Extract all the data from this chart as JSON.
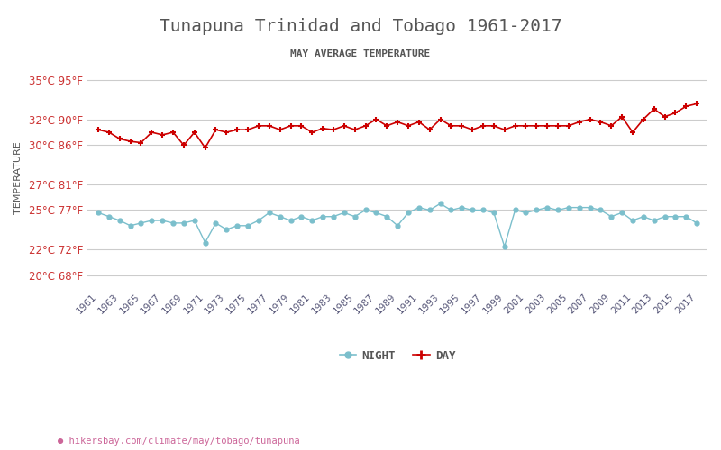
{
  "title": "Tunapuna Trinidad and Tobago 1961-2017",
  "subtitle": "MAY AVERAGE TEMPERATURE",
  "xlabel_url": "hikersbay.com/climate/may/tobago/tunapuna",
  "ylabel": "TEMPERATURE",
  "years": [
    1961,
    1962,
    1963,
    1964,
    1965,
    1966,
    1967,
    1968,
    1969,
    1970,
    1971,
    1972,
    1973,
    1974,
    1975,
    1976,
    1977,
    1978,
    1979,
    1980,
    1981,
    1982,
    1983,
    1984,
    1985,
    1986,
    1987,
    1988,
    1989,
    1990,
    1991,
    1992,
    1993,
    1994,
    1995,
    1996,
    1997,
    1998,
    1999,
    2000,
    2001,
    2002,
    2003,
    2004,
    2005,
    2006,
    2007,
    2008,
    2009,
    2010,
    2011,
    2012,
    2013,
    2014,
    2015,
    2016,
    2017
  ],
  "day_temps": [
    31.2,
    31.0,
    30.5,
    30.3,
    30.2,
    31.0,
    30.8,
    31.0,
    30.0,
    31.0,
    29.8,
    31.2,
    31.0,
    31.2,
    31.2,
    31.5,
    31.5,
    31.2,
    31.5,
    31.5,
    31.0,
    31.3,
    31.2,
    31.5,
    31.2,
    31.5,
    32.0,
    31.5,
    31.8,
    31.5,
    31.8,
    31.2,
    32.0,
    31.5,
    31.5,
    31.2,
    31.5,
    31.5,
    31.2,
    31.5,
    31.5,
    31.5,
    31.5,
    31.5,
    31.5,
    31.8,
    32.0,
    31.8,
    31.5,
    32.2,
    31.0,
    32.0,
    32.8,
    32.2,
    32.5,
    33.0,
    33.2
  ],
  "night_temps": [
    24.8,
    24.5,
    24.2,
    23.8,
    24.0,
    24.2,
    24.2,
    24.0,
    24.0,
    24.2,
    22.5,
    24.0,
    23.5,
    23.8,
    23.8,
    24.2,
    24.8,
    24.5,
    24.2,
    24.5,
    24.2,
    24.5,
    24.5,
    24.8,
    24.5,
    25.0,
    24.8,
    24.5,
    23.8,
    24.8,
    25.2,
    25.0,
    25.5,
    25.0,
    25.2,
    25.0,
    25.0,
    24.8,
    22.2,
    25.0,
    24.8,
    25.0,
    25.2,
    25.0,
    25.2,
    25.2,
    25.2,
    25.0,
    24.5,
    24.8,
    24.2,
    24.5,
    24.2,
    24.5,
    24.5,
    24.5,
    24.0
  ],
  "yticks_c": [
    20,
    22,
    25,
    27,
    30,
    32,
    35
  ],
  "yticks_f": [
    68,
    72,
    77,
    81,
    86,
    90,
    95
  ],
  "ymin": 19,
  "ymax": 36,
  "day_color": "#cc0000",
  "night_color": "#7bbfcc",
  "title_color": "#555555",
  "subtitle_color": "#555555",
  "ylabel_color": "#555555",
  "ytick_color": "#cc3333",
  "xtick_color": "#555577",
  "grid_color": "#cccccc",
  "bg_color": "#ffffff",
  "url_color": "#cc6699",
  "legend_night": "NIGHT",
  "legend_day": "DAY"
}
